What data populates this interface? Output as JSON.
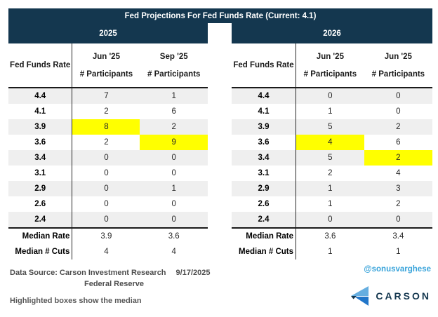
{
  "header": {
    "title": "Fed Projections For Fed Funds Rate (Current: 4.1)"
  },
  "chart_data": {
    "type": "table",
    "title": "Fed Projections For Fed Funds Rate (Current: 4.1)",
    "current_rate": "4.1",
    "highlight_note": "Highlighted boxes show the median",
    "tables": [
      {
        "year": "2025",
        "rate_col_header": "Fed Funds Rate",
        "columns": [
          {
            "period": "Jun '25",
            "metric": "# Participants"
          },
          {
            "period": "Sep '25",
            "metric": "# Participants"
          }
        ],
        "rows": [
          {
            "rate": "4.4",
            "values": [
              "7",
              "1"
            ],
            "highlight": null
          },
          {
            "rate": "4.1",
            "values": [
              "2",
              "6"
            ],
            "highlight": null
          },
          {
            "rate": "3.9",
            "values": [
              "8",
              "2"
            ],
            "highlight": 0
          },
          {
            "rate": "3.6",
            "values": [
              "2",
              "9"
            ],
            "highlight": 1
          },
          {
            "rate": "3.4",
            "values": [
              "0",
              "0"
            ],
            "highlight": null
          },
          {
            "rate": "3.1",
            "values": [
              "0",
              "0"
            ],
            "highlight": null
          },
          {
            "rate": "2.9",
            "values": [
              "0",
              "1"
            ],
            "highlight": null
          },
          {
            "rate": "2.6",
            "values": [
              "0",
              "0"
            ],
            "highlight": null
          },
          {
            "rate": "2.4",
            "values": [
              "0",
              "0"
            ],
            "highlight": null
          }
        ],
        "median_rate_label": "Median Rate",
        "median_rate_values": [
          "3.9",
          "3.6"
        ],
        "median_cuts_label": "Median # Cuts",
        "median_cuts_values": [
          "4",
          "4"
        ]
      },
      {
        "year": "2026",
        "rate_col_header": "Fed Funds Rate",
        "columns": [
          {
            "period": "Jun '25",
            "metric": "# Participants"
          },
          {
            "period": "Jun '25",
            "metric": "# Participants"
          }
        ],
        "rows": [
          {
            "rate": "4.4",
            "values": [
              "0",
              "0"
            ],
            "highlight": null
          },
          {
            "rate": "4.1",
            "values": [
              "1",
              "0"
            ],
            "highlight": null
          },
          {
            "rate": "3.9",
            "values": [
              "5",
              "2"
            ],
            "highlight": null
          },
          {
            "rate": "3.6",
            "values": [
              "4",
              "6"
            ],
            "highlight": 0
          },
          {
            "rate": "3.4",
            "values": [
              "5",
              "2"
            ],
            "highlight": 1
          },
          {
            "rate": "3.1",
            "values": [
              "2",
              "4"
            ],
            "highlight": null
          },
          {
            "rate": "2.9",
            "values": [
              "1",
              "3"
            ],
            "highlight": null
          },
          {
            "rate": "2.6",
            "values": [
              "1",
              "2"
            ],
            "highlight": null
          },
          {
            "rate": "2.4",
            "values": [
              "0",
              "0"
            ],
            "highlight": null
          }
        ],
        "median_rate_label": "Median Rate",
        "median_rate_values": [
          "3.6",
          "3.4"
        ],
        "median_cuts_label": "Median # Cuts",
        "median_cuts_values": [
          "1",
          "1"
        ]
      }
    ]
  },
  "footer": {
    "source_line1": "Data Source: Carson Investment Research",
    "source_date": "9/17/2025",
    "source_line2": "Federal Reserve",
    "note": "Highlighted boxes show the median",
    "handle": "@sonusvarghese",
    "brand": "CARSON"
  },
  "colors": {
    "navy": "#14374f",
    "highlight_yellow": "#ffff00",
    "row_alt_gray": "#efefef",
    "handle_blue": "#38a3da",
    "logo_light_blue": "#66aee0",
    "logo_dark_blue": "#2276c9"
  }
}
